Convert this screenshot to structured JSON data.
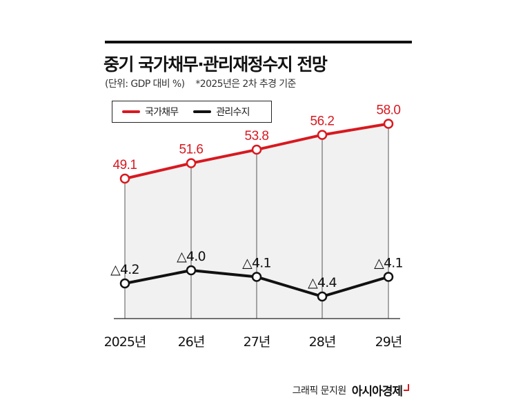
{
  "header": {
    "title": "중기 국가채무·관리재정수지 전망",
    "unit": "(단위: GDP 대비 %)",
    "note": "*2025년은 2차 추경 기준"
  },
  "legend": {
    "items": [
      {
        "label": "국가채무",
        "color": "#d71920"
      },
      {
        "label": "관리수지",
        "color": "#111111"
      }
    ]
  },
  "credit": {
    "text": "그래픽 문지원",
    "brand": "아시아경제"
  },
  "chart_data": {
    "type": "line",
    "categories": [
      "2025년",
      "26년",
      "27년",
      "28년",
      "29년"
    ],
    "series": [
      {
        "name": "국가채무",
        "values": [
          49.1,
          51.6,
          53.8,
          56.2,
          58.0
        ],
        "labels": [
          "49.1",
          "51.6",
          "53.8",
          "56.2",
          "58.0"
        ],
        "color": "#d71920"
      },
      {
        "name": "관리수지",
        "values": [
          -4.2,
          -4.0,
          -4.1,
          -4.4,
          -4.1
        ],
        "labels": [
          "△4.2",
          "△4.0",
          "△4.1",
          "△4.4",
          "△4.1"
        ],
        "color": "#111111"
      }
    ],
    "title": "중기 국가채무·관리재정수지 전망",
    "ylabel": "GDP 대비 %",
    "grid": false,
    "legend_position": "top-left"
  }
}
